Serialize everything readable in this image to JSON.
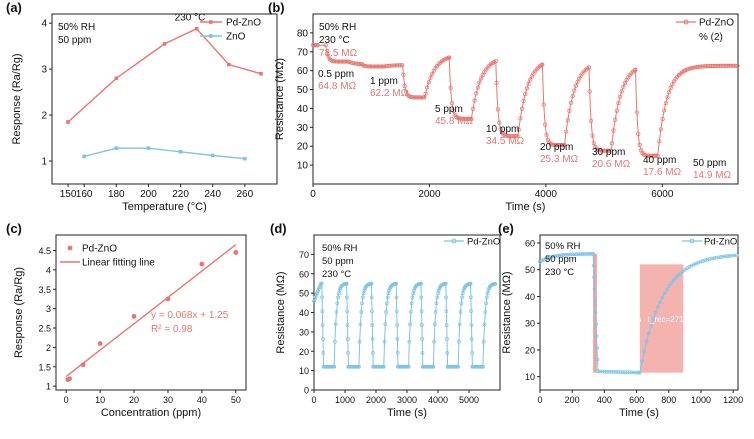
{
  "colors": {
    "pd": "#e8766f",
    "pd_light": "#f2a19b",
    "zno": "#7fc3e6",
    "axis": "#222222",
    "shade": "#f08a84"
  },
  "chart_data": [
    {
      "id": "a",
      "type": "line",
      "panel_label": "(a)",
      "annotations": [
        "50% RH",
        "50 ppm",
        "230 °C"
      ],
      "xlabel": "Temperature (°C)",
      "ylabel": "Response (Ra/Rg)",
      "xlim": [
        140,
        280
      ],
      "ylim": [
        0.5,
        4.2
      ],
      "xticks": [
        150,
        160,
        180,
        200,
        220,
        240,
        260
      ],
      "yticks": [
        1,
        2,
        3,
        4
      ],
      "series": [
        {
          "name": "Pd-ZnO",
          "x": [
            150,
            180,
            210,
            230,
            250,
            270
          ],
          "y": [
            1.85,
            2.8,
            3.55,
            3.88,
            3.1,
            2.9
          ]
        },
        {
          "name": "ZnO",
          "x": [
            160,
            180,
            200,
            220,
            240,
            260
          ],
          "y": [
            1.1,
            1.28,
            1.28,
            1.2,
            1.12,
            1.05
          ]
        }
      ]
    },
    {
      "id": "b",
      "type": "line",
      "panel_label": "(b)",
      "annotations": [
        "50% RH",
        "230 °C"
      ],
      "xlabel": "Time (s)",
      "ylabel": "Resistance (MΩ)",
      "xlim": [
        0,
        7300
      ],
      "ylim": [
        0,
        90
      ],
      "xticks": [
        0,
        2000,
        4000,
        6000
      ],
      "yticks": [
        10,
        20,
        30,
        40,
        50,
        60,
        70,
        80
      ],
      "legend": [
        "Pd-ZnO",
        "% (2)"
      ],
      "baseline_label": "73.5 MΩ",
      "steps": [
        {
          "conc": "0.5 ppm",
          "value": "64.8 MΩ",
          "min": 64.8
        },
        {
          "conc": "1 ppm",
          "value": "62.2 MΩ",
          "min": 62.2
        },
        {
          "conc": "5 ppm",
          "value": "45.8 MΩ",
          "min": 45.8
        },
        {
          "conc": "10 ppm",
          "value": "34.5 MΩ",
          "min": 34.5
        },
        {
          "conc": "20 ppm",
          "value": "25.3 MΩ",
          "min": 25.3
        },
        {
          "conc": "30 ppm",
          "value": "20.6 MΩ",
          "min": 20.6
        },
        {
          "conc": "40 ppm",
          "value": "17.6 MΩ",
          "min": 17.6
        },
        {
          "conc": "50 ppm",
          "value": "14.9 MΩ",
          "min": 14.9
        }
      ]
    },
    {
      "id": "c",
      "type": "scatter",
      "panel_label": "(c)",
      "xlabel": "Concentration (ppm)",
      "ylabel": "Response (Ra/Rg)",
      "xlim": [
        -3,
        53
      ],
      "ylim": [
        0.9,
        4.9
      ],
      "xticks": [
        0,
        10,
        20,
        30,
        40,
        50
      ],
      "yticks": [
        1,
        1.5,
        2,
        2.5,
        3,
        3.5,
        4,
        4.5
      ],
      "legend": [
        "Pd-ZnO",
        "Linear fitting line"
      ],
      "equation": "y = 0.068x + 1.25",
      "r2": "R² = 0.98",
      "fit": {
        "slope": 0.068,
        "intercept": 1.25
      },
      "x": [
        0.5,
        1,
        5,
        10,
        20,
        30,
        40,
        50
      ],
      "y": [
        1.17,
        1.19,
        1.55,
        2.1,
        2.8,
        3.25,
        4.15,
        4.45
      ]
    },
    {
      "id": "d",
      "type": "line",
      "panel_label": "(d)",
      "annotations": [
        "50% RH",
        "50 ppm",
        "230 °C"
      ],
      "xlabel": "Time (s)",
      "ylabel": "Resistance (MΩ)",
      "xlim": [
        0,
        6000
      ],
      "ylim": [
        0,
        80
      ],
      "xticks": [
        0,
        1000,
        2000,
        3000,
        4000,
        5000
      ],
      "yticks": [
        0,
        10,
        20,
        30,
        40,
        50,
        60,
        70
      ],
      "legend": [
        "Pd-ZnO"
      ],
      "cycles": 7,
      "high": 55,
      "low": 12
    },
    {
      "id": "e",
      "type": "line",
      "panel_label": "(e)",
      "annotations": [
        "50% RH",
        "50 ppm",
        "230 °C"
      ],
      "xlabel": "Time (s)",
      "ylabel": "Resistance (MΩ)",
      "xlim": [
        0,
        1230
      ],
      "ylim": [
        5,
        63
      ],
      "xticks": [
        0,
        200,
        400,
        600,
        800,
        1000,
        1200
      ],
      "yticks": [
        10,
        20,
        30,
        40,
        50,
        60
      ],
      "legend": [
        "Pd-ZnO"
      ],
      "t_res": "t_res=23.2 s",
      "t_rec": "t_rec=271.6 s",
      "gas_on": 330,
      "gas_off": 620,
      "high": 56,
      "low": 11.5
    }
  ]
}
